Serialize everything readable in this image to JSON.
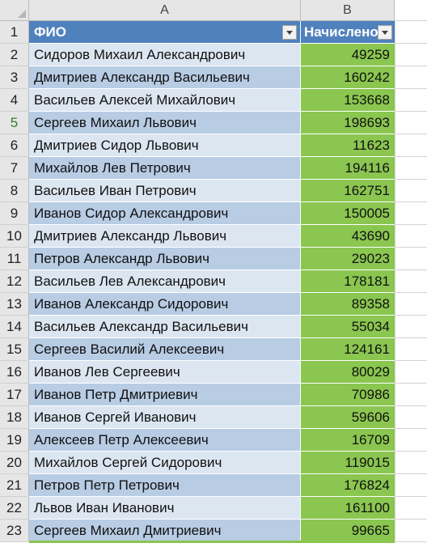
{
  "columns": {
    "a": "A",
    "b": "B"
  },
  "header": {
    "row_number": "1",
    "fio": "ФИО",
    "accrued": "Начислено"
  },
  "rows": [
    {
      "num": "2",
      "name": "Сидоров Михаил Александрович",
      "value": "49259"
    },
    {
      "num": "3",
      "name": "Дмитриев Александр Васильевич",
      "value": "160242"
    },
    {
      "num": "4",
      "name": "Васильев Алексей Михайлович",
      "value": "153668"
    },
    {
      "num": "5",
      "name": "Сергеев Михаил Львович",
      "value": "198693"
    },
    {
      "num": "6",
      "name": "Дмитриев Сидор Львович",
      "value": "11623"
    },
    {
      "num": "7",
      "name": "Михайлов Лев Петрович",
      "value": "194116"
    },
    {
      "num": "8",
      "name": "Васильев Иван Петрович",
      "value": "162751"
    },
    {
      "num": "9",
      "name": "Иванов Сидор Александрович",
      "value": "150005"
    },
    {
      "num": "10",
      "name": "Дмитриев Александр Львович",
      "value": "43690"
    },
    {
      "num": "11",
      "name": "Петров Александр Львович",
      "value": "29023"
    },
    {
      "num": "12",
      "name": "Васильев Лев Александрович",
      "value": "178181"
    },
    {
      "num": "13",
      "name": "Иванов Александр Сидорович",
      "value": "89358"
    },
    {
      "num": "14",
      "name": "Васильев Александр Васильевич",
      "value": "55034"
    },
    {
      "num": "15",
      "name": "Сергеев Василий Алексеевич",
      "value": "124161"
    },
    {
      "num": "16",
      "name": "Иванов Лев Сергеевич",
      "value": "80029"
    },
    {
      "num": "17",
      "name": "Иванов Петр Дмитриевич",
      "value": "70986"
    },
    {
      "num": "18",
      "name": "Иванов Сергей Иванович",
      "value": "59606"
    },
    {
      "num": "19",
      "name": "Алексеев Петр Алексеевич",
      "value": "16709"
    },
    {
      "num": "20",
      "name": "Михайлов Сергей Сидорович",
      "value": "119015"
    },
    {
      "num": "21",
      "name": "Петров Петр Петрович",
      "value": "176824"
    },
    {
      "num": "22",
      "name": "Львов Иван Иванович",
      "value": "161100"
    },
    {
      "num": "23",
      "name": "Сергеев Михаил Дмитриевич",
      "value": "99665"
    }
  ],
  "colors": {
    "header_fill": "#4f81bd",
    "band_dark": "#b8cce4",
    "band_light": "#dce6f1",
    "value_fill": "#8ac650",
    "active_row_number": "#2e7d32"
  },
  "icons": {
    "filter": "dropdown-filter-icon",
    "select_all": "select-all-triangle-icon"
  }
}
